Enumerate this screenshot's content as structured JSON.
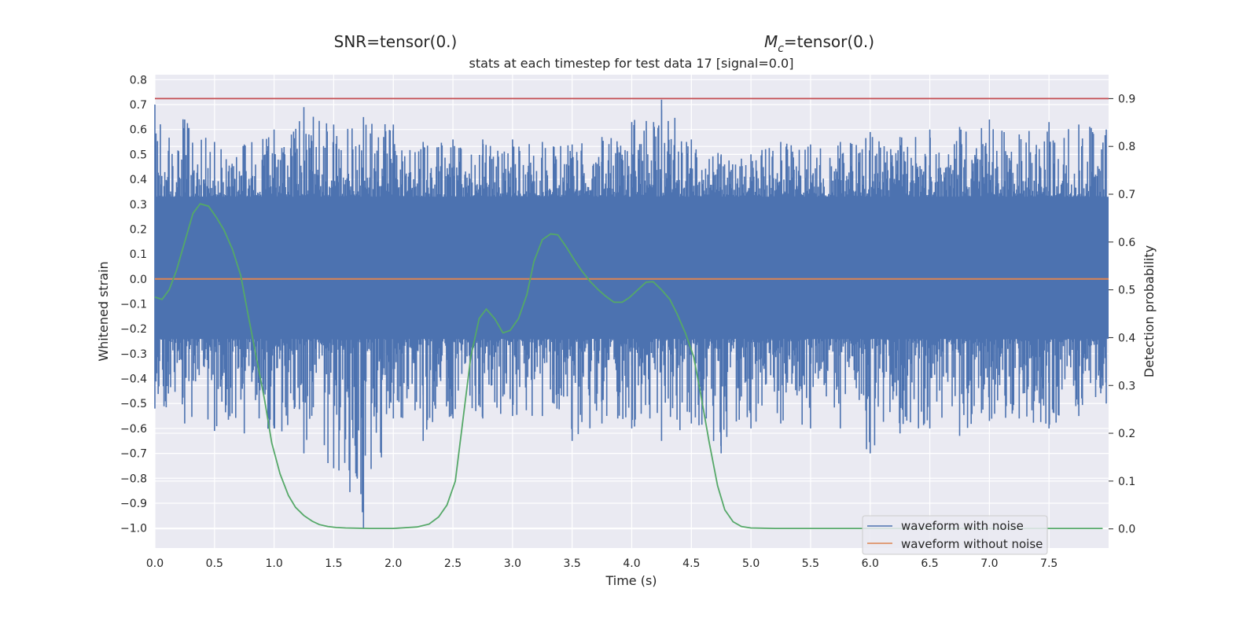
{
  "chart_data": {
    "type": "line",
    "suptitle_left": "SNR=tensor(0.)",
    "suptitle_right_symbol": "M",
    "suptitle_right_subscript": "c",
    "suptitle_right_rest": "=tensor(0.)",
    "title": "stats at each timestep for test data 17 [signal=0.0]",
    "xlabel": "Time (s)",
    "ylabel_left": "Whitened strain",
    "ylabel_right": "Detection probability",
    "xlim": [
      0,
      8
    ],
    "ylim_left": [
      -1.08,
      0.82
    ],
    "ylim_right": [
      -0.04,
      0.95
    ],
    "x_ticks": [
      0.0,
      0.5,
      1.0,
      1.5,
      2.0,
      2.5,
      3.0,
      3.5,
      4.0,
      4.5,
      5.0,
      5.5,
      6.0,
      6.5,
      7.0,
      7.5
    ],
    "x_tick_labels": [
      "0.0",
      "0.5",
      "1.0",
      "1.5",
      "2.0",
      "2.5",
      "3.0",
      "3.5",
      "4.0",
      "4.5",
      "5.0",
      "5.5",
      "6.0",
      "6.5",
      "7.0",
      "7.5"
    ],
    "y_left_ticks": [
      0.8,
      0.7,
      0.6,
      0.5,
      0.4,
      0.3,
      0.2,
      0.1,
      0.0,
      -0.1,
      -0.2,
      -0.3,
      -0.4,
      -0.5,
      -0.6,
      -0.7,
      -0.8,
      -0.9,
      -1.0
    ],
    "y_left_tick_labels": [
      "0.8",
      "0.7",
      "0.6",
      "0.5",
      "0.4",
      "0.3",
      "0.2",
      "0.1",
      "0.0",
      "−0.1",
      "−0.2",
      "−0.3",
      "−0.4",
      "−0.5",
      "−0.6",
      "−0.7",
      "−0.8",
      "−0.9",
      "−1.0"
    ],
    "y_right_ticks": [
      0.9,
      0.8,
      0.7,
      0.6,
      0.5,
      0.4,
      0.3,
      0.2,
      0.1,
      0.0
    ],
    "y_right_tick_labels": [
      "0.9",
      "0.8",
      "0.7",
      "0.6",
      "0.5",
      "0.4",
      "0.3",
      "0.2",
      "0.1",
      "0.0"
    ],
    "noise_envelope": {
      "name": "waveform with noise",
      "color": "#4c72b0",
      "dense_band": [
        -0.24,
        0.33
      ],
      "x": [
        0.0,
        0.25,
        0.5,
        0.75,
        1.0,
        1.25,
        1.5,
        1.75,
        2.0,
        2.25,
        2.5,
        2.75,
        3.0,
        3.25,
        3.5,
        3.75,
        4.0,
        4.25,
        4.5,
        4.75,
        5.0,
        5.25,
        5.5,
        5.75,
        6.0,
        6.25,
        6.5,
        6.75,
        7.0,
        7.25,
        7.5,
        7.75,
        7.98
      ],
      "upper": [
        0.7,
        0.64,
        0.55,
        0.54,
        0.6,
        0.69,
        0.62,
        0.65,
        0.62,
        0.55,
        0.56,
        0.56,
        0.56,
        0.55,
        0.54,
        0.57,
        0.63,
        0.72,
        0.56,
        0.5,
        0.5,
        0.55,
        0.54,
        0.55,
        0.59,
        0.57,
        0.6,
        0.61,
        0.64,
        0.58,
        0.63,
        0.62,
        0.6
      ],
      "lower": [
        -0.52,
        -0.58,
        -0.61,
        -0.62,
        -0.6,
        -0.7,
        -0.76,
        -1.0,
        -0.56,
        -0.65,
        -0.56,
        -0.56,
        -0.55,
        -0.55,
        -0.65,
        -0.58,
        -0.6,
        -0.65,
        -0.58,
        -0.7,
        -0.6,
        -0.58,
        -0.6,
        -0.6,
        -0.7,
        -0.62,
        -0.6,
        -0.63,
        -0.57,
        -0.56,
        -0.6,
        -0.55,
        -0.5
      ]
    },
    "clean_waveform": {
      "name": "waveform without noise",
      "color": "#dd8452",
      "value": 0.0
    },
    "detection_probability": {
      "color": "#55a868",
      "x": [
        0.0,
        0.06,
        0.12,
        0.18,
        0.25,
        0.32,
        0.38,
        0.45,
        0.52,
        0.58,
        0.65,
        0.72,
        0.78,
        0.85,
        0.92,
        0.98,
        1.05,
        1.12,
        1.18,
        1.25,
        1.32,
        1.38,
        1.45,
        1.52,
        1.6,
        1.8,
        2.0,
        2.2,
        2.3,
        2.38,
        2.45,
        2.52,
        2.58,
        2.65,
        2.72,
        2.78,
        2.85,
        2.92,
        2.98,
        3.05,
        3.12,
        3.18,
        3.25,
        3.32,
        3.38,
        3.45,
        3.52,
        3.58,
        3.65,
        3.72,
        3.78,
        3.85,
        3.92,
        3.98,
        4.05,
        4.12,
        4.18,
        4.25,
        4.32,
        4.38,
        4.45,
        4.52,
        4.58,
        4.65,
        4.72,
        4.78,
        4.85,
        4.92,
        5.0,
        5.2,
        5.5,
        6.0,
        7.0,
        7.95
      ],
      "y": [
        0.485,
        0.48,
        0.5,
        0.54,
        0.6,
        0.66,
        0.68,
        0.675,
        0.65,
        0.625,
        0.585,
        0.53,
        0.45,
        0.36,
        0.27,
        0.18,
        0.115,
        0.07,
        0.045,
        0.028,
        0.016,
        0.009,
        0.005,
        0.003,
        0.002,
        0.001,
        0.001,
        0.004,
        0.01,
        0.025,
        0.05,
        0.1,
        0.22,
        0.36,
        0.44,
        0.46,
        0.44,
        0.41,
        0.415,
        0.44,
        0.49,
        0.56,
        0.605,
        0.617,
        0.615,
        0.59,
        0.562,
        0.54,
        0.518,
        0.5,
        0.487,
        0.474,
        0.474,
        0.484,
        0.5,
        0.516,
        0.517,
        0.5,
        0.48,
        0.45,
        0.41,
        0.36,
        0.28,
        0.18,
        0.09,
        0.04,
        0.015,
        0.005,
        0.002,
        0.001,
        0.001,
        0.001,
        0.001,
        0.001
      ]
    },
    "threshold": {
      "color": "#c44e52",
      "value": 0.9
    },
    "legend_position": "lower-right",
    "grid": true,
    "background": "#eaeaf2"
  }
}
